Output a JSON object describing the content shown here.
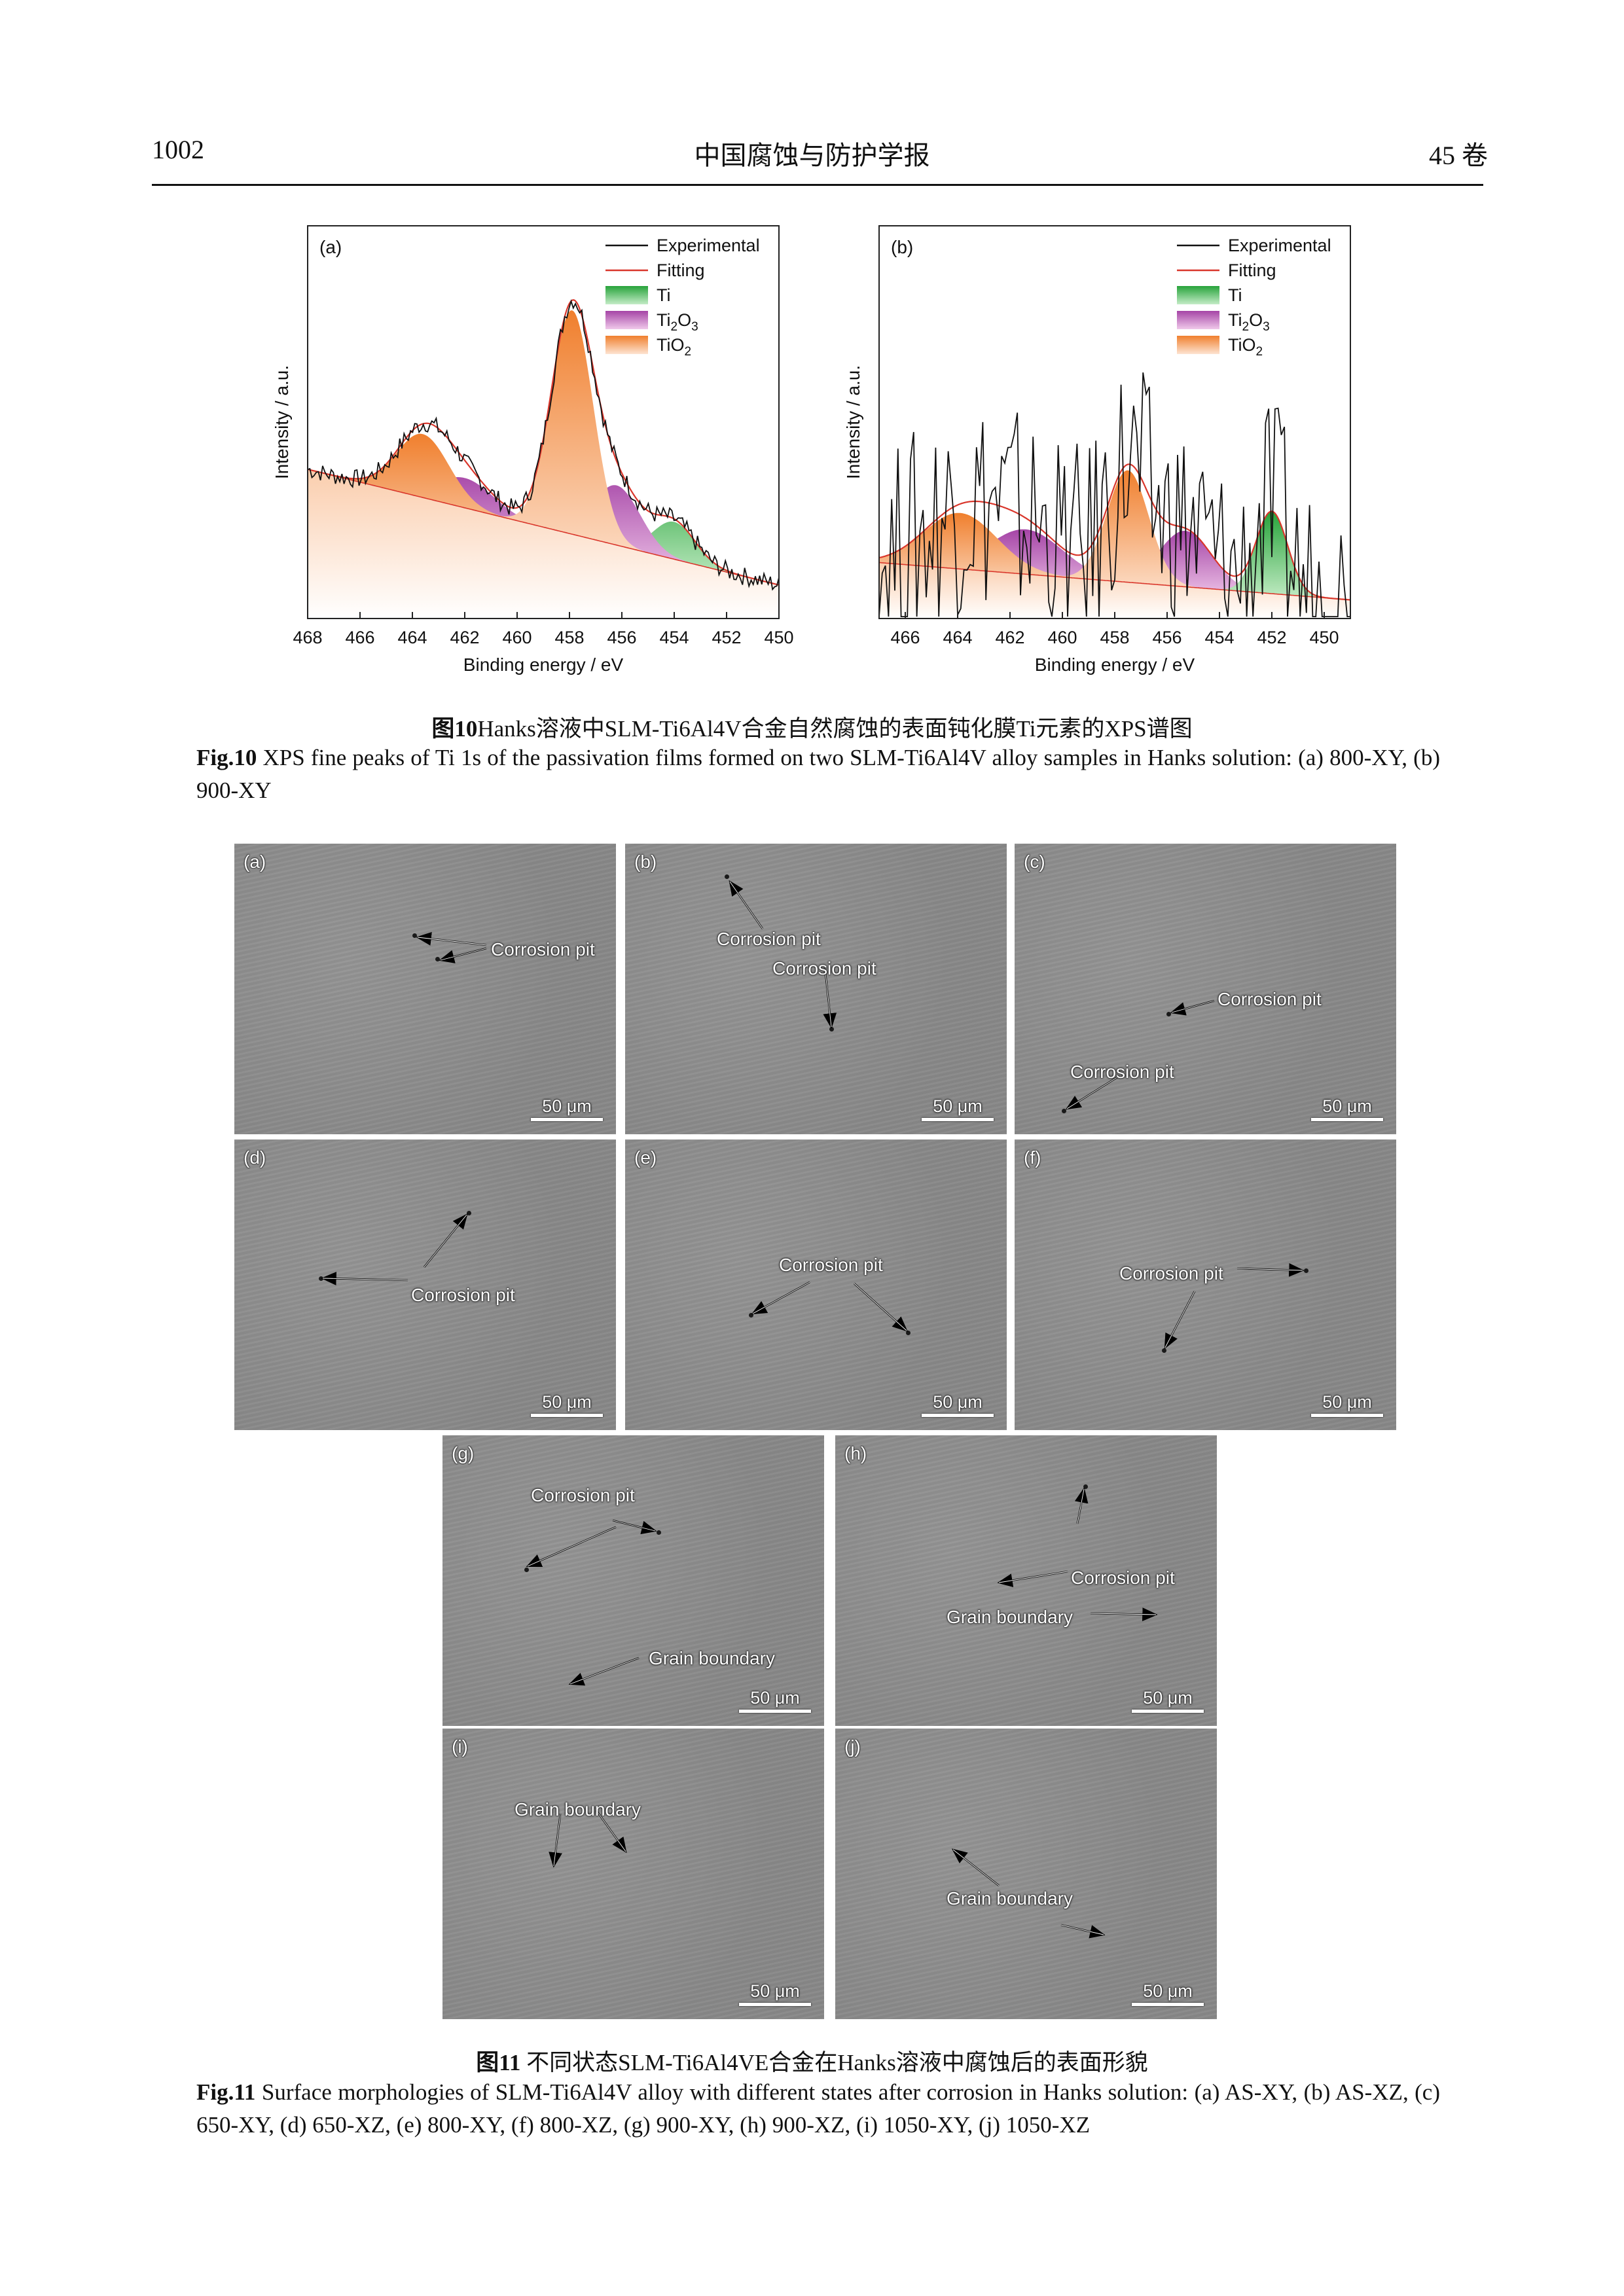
{
  "header": {
    "page_number": "1002",
    "journal": "中国腐蚀与防护学报",
    "volume": "45 卷"
  },
  "chart_data": [
    {
      "type": "line",
      "panel": "(a)",
      "xlabel": "Binding energy / eV",
      "ylabel": "Intensity / a.u.",
      "xlim": [
        468,
        450
      ],
      "ylim": [
        0,
        1
      ],
      "x_ticks": [
        "468",
        "466",
        "464",
        "462",
        "460",
        "458",
        "456",
        "454",
        "452",
        "450"
      ],
      "legend": [
        "Experimental",
        "Fitting",
        "Ti",
        "Ti2O3",
        "TiO2"
      ],
      "legend_position": "top-right",
      "background": {
        "a": 0.4,
        "b": 0.09
      },
      "components": [
        {
          "name": "TiO2",
          "center": 463.6,
          "width": 1.0,
          "height": 0.17,
          "color": "#f07f2d"
        },
        {
          "name": "Ti2O3",
          "center": 462.0,
          "width": 1.1,
          "height": 0.08,
          "color": "#a544a6"
        },
        {
          "name": "TiO2",
          "center": 457.9,
          "width": 0.8,
          "height": 0.6,
          "color": "#f07f2d"
        },
        {
          "name": "Ti2O3",
          "center": 456.2,
          "width": 0.9,
          "height": 0.16,
          "color": "#a544a6"
        },
        {
          "name": "Ti",
          "center": 454.0,
          "width": 0.8,
          "height": 0.1,
          "color": "#27a33a"
        }
      ],
      "noise_amplitude": 0.025
    },
    {
      "type": "line",
      "panel": "(b)",
      "xlabel": "Binding energy / eV",
      "ylabel": "Intensity / a.u.",
      "xlim": [
        467,
        449
      ],
      "ylim": [
        0,
        1
      ],
      "x_ticks": [
        "466",
        "464",
        "462",
        "460",
        "458",
        "456",
        "454",
        "452",
        "450"
      ],
      "legend": [
        "Experimental",
        "Fitting",
        "Ti",
        "Ti2O3",
        "TiO2"
      ],
      "legend_position": "top-right",
      "background": {
        "a": 0.15,
        "b": 0.05
      },
      "components": [
        {
          "name": "TiO2",
          "center": 463.9,
          "width": 1.4,
          "height": 0.15,
          "color": "#f07f2d"
        },
        {
          "name": "Ti2O3",
          "center": 461.4,
          "width": 1.4,
          "height": 0.12,
          "color": "#a544a6"
        },
        {
          "name": "TiO2",
          "center": 457.5,
          "width": 0.8,
          "height": 0.3,
          "color": "#f07f2d"
        },
        {
          "name": "Ti2O3",
          "center": 455.3,
          "width": 1.0,
          "height": 0.15,
          "color": "#a544a6"
        },
        {
          "name": "Ti",
          "center": 452.0,
          "width": 0.6,
          "height": 0.22,
          "color": "#27a33a"
        }
      ],
      "noise_amplitude": 0.3
    }
  ],
  "fig10": {
    "cn_label": "图10",
    "cn_text": "Hanks溶液中SLM-Ti6Al4V合金自然腐蚀的表面钝化膜Ti元素的XPS谱图",
    "en_label": "Fig.10",
    "en_text": "XPS fine peaks of Ti 1s of the passivation films formed on two SLM-Ti6Al4V alloy samples in Hanks solution: (a) 800-XY, (b) 900-XY"
  },
  "fig11": {
    "panels": [
      {
        "label": "(a)",
        "scale": "50 μm",
        "annotations": [
          "Corrosion pit"
        ]
      },
      {
        "label": "(b)",
        "scale": "50 μm",
        "annotations": [
          "Corrosion pit",
          "Corrosion pit"
        ]
      },
      {
        "label": "(c)",
        "scale": "50 μm",
        "annotations": [
          "Corrosion pit",
          "Corrosion pit"
        ]
      },
      {
        "label": "(d)",
        "scale": "50 μm",
        "annotations": [
          "Corrosion pit"
        ]
      },
      {
        "label": "(e)",
        "scale": "50 μm",
        "annotations": [
          "Corrosion pit"
        ]
      },
      {
        "label": "(f)",
        "scale": "50 μm",
        "annotations": [
          "Corrosion pit"
        ]
      },
      {
        "label": "(g)",
        "scale": "50 μm",
        "annotations": [
          "Corrosion pit",
          "Grain boundary"
        ]
      },
      {
        "label": "(h)",
        "scale": "50 μm",
        "annotations": [
          "Corrosion pit",
          "Grain boundary"
        ]
      },
      {
        "label": "(i)",
        "scale": "50 μm",
        "annotations": [
          "Grain boundary"
        ]
      },
      {
        "label": "(j)",
        "scale": "50 μm",
        "annotations": [
          "Grain boundary"
        ]
      }
    ],
    "cn_label": "图11",
    "cn_text": "不同状态SLM-Ti6Al4VE合金在Hanks溶液中腐蚀后的表面形貌",
    "en_label": "Fig.11",
    "en_text": "Surface morphologies of SLM-Ti6Al4V alloy with different states after corrosion in Hanks solution: (a) AS-XY, (b) AS-XZ, (c) 650-XY, (d) 650-XZ, (e) 800-XY, (f) 800-XZ, (g) 900-XY, (h) 900-XZ, (i) 1050-XY, (j) 1050-XZ"
  }
}
